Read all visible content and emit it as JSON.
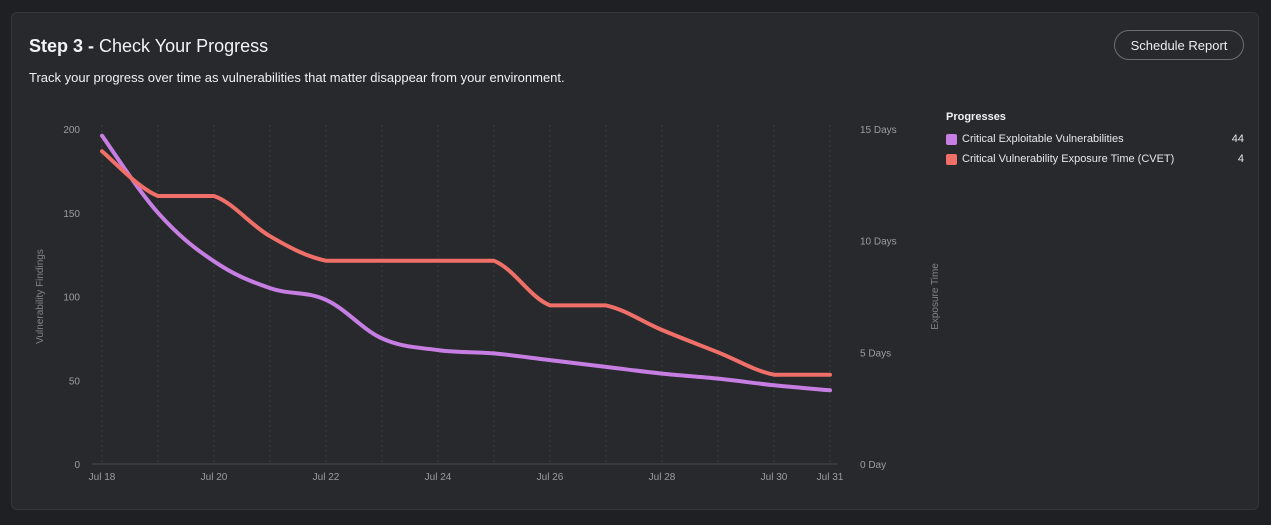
{
  "header": {
    "step": "Step 3 -",
    "title": "Check Your Progress",
    "subtitle": "Track your progress over time as vulnerabilities that matter disappear from your environment.",
    "schedule_button": "Schedule Report"
  },
  "legend": {
    "title": "Progresses",
    "items": [
      {
        "name": "Critical Exploitable Vulnerabilities",
        "value": "44",
        "color": "#c77ee3"
      },
      {
        "name": "Critical Vulnerability Exposure Time (CVET)",
        "value": "4",
        "color": "#f07069"
      }
    ]
  },
  "chart_data": {
    "type": "line",
    "x": [
      "Jul 18",
      "Jul 19",
      "Jul 20",
      "Jul 21",
      "Jul 22",
      "Jul 23",
      "Jul 24",
      "Jul 25",
      "Jul 26",
      "Jul 27",
      "Jul 28",
      "Jul 29",
      "Jul 30",
      "Jul 31"
    ],
    "x_tick_labels": [
      "Jul 18",
      "Jul 20",
      "Jul 22",
      "Jul 24",
      "Jul 26",
      "Jul 28",
      "Jul 30",
      "Jul 31"
    ],
    "ylabel": "Vulnerability Findings",
    "ylim": [
      0,
      200
    ],
    "y_ticks": [
      0,
      50,
      100,
      150,
      200
    ],
    "y2label": "Exposure Time",
    "y2lim": [
      0,
      15
    ],
    "y2_tick_labels": [
      "0 Day",
      "5 Days",
      "10 Days",
      "15 Days"
    ],
    "y2_ticks": [
      0,
      5,
      10,
      15
    ],
    "grid": "vertical dashed",
    "series": [
      {
        "name": "Critical Exploitable Vulnerabilities",
        "axis": "left",
        "color": "#c77ee3",
        "values": [
          196,
          150,
          121,
          105,
          98,
          75,
          68,
          66,
          62,
          58,
          54,
          51,
          47,
          44
        ]
      },
      {
        "name": "Critical Vulnerability Exposure Time (CVET)",
        "axis": "right",
        "color": "#f07069",
        "values": [
          14,
          12,
          12,
          10.2,
          9.1,
          9.1,
          9.1,
          9.1,
          7.1,
          7.1,
          6,
          5,
          4,
          4
        ]
      }
    ]
  }
}
